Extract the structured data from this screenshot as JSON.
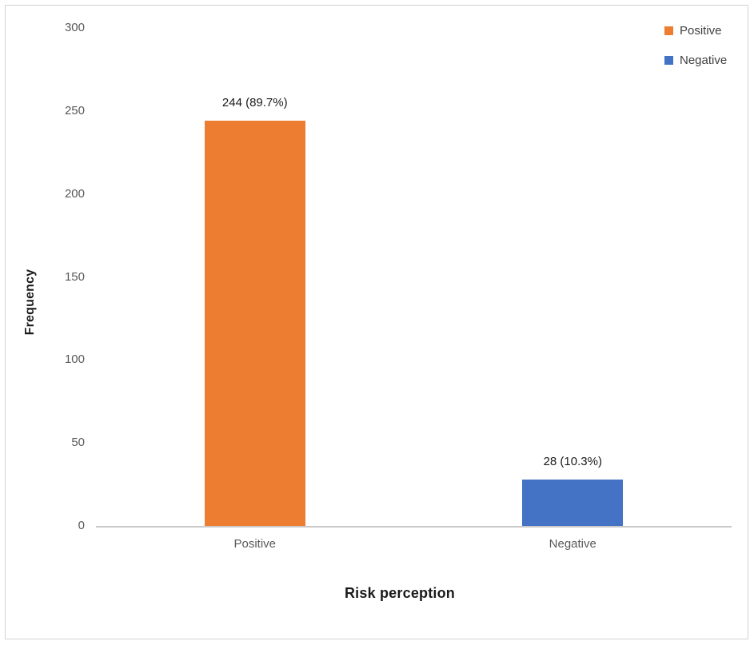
{
  "chart_data": {
    "type": "bar",
    "title": "",
    "categories": [
      "Positive",
      "Negative"
    ],
    "values": [
      244,
      28
    ],
    "data_labels": [
      "244 (89.7%)",
      "28 (10.3%)"
    ],
    "bar_colors": [
      "#ED7D31",
      "#4472C4"
    ],
    "xlabel": "Risk perception",
    "ylabel": "Frequency",
    "ylim": [
      0,
      300
    ],
    "yticks": [
      0,
      50,
      100,
      150,
      200,
      250,
      300
    ],
    "grid": false,
    "legend": {
      "position": "top-right",
      "items": [
        {
          "label": "Positive",
          "color": "#ED7D31"
        },
        {
          "label": "Negative",
          "color": "#4472C4"
        }
      ]
    }
  },
  "colors": {
    "background": "#ffffff",
    "frame_border": "#d2d2d2",
    "axis_line": "#c9c9c9",
    "tick_text": "#595959",
    "category_text": "#595959",
    "legend_text": "#404040",
    "data_label_text": "#1a1a1a",
    "axis_title_text": "#1a1a1a"
  }
}
